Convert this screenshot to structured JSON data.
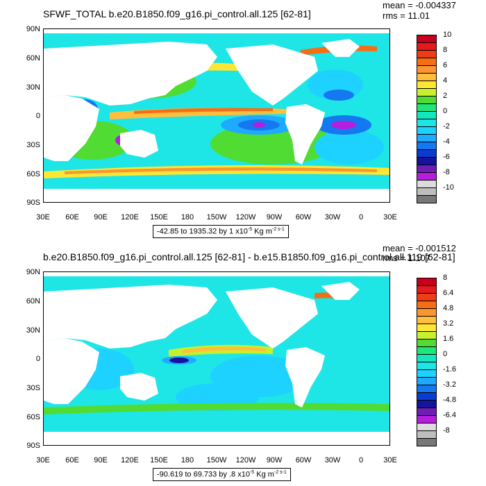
{
  "panels": [
    {
      "title": "SFWF_TOTAL b.e20.B1850.f09_g16.pi_control.all.125 [62-81]",
      "mean": "mean = -0.004337",
      "rms": "rms = 11.01",
      "range_prefix": "-42.85 to 1935.32 by 1 x10",
      "range_exp": "-5",
      "range_units": " Kg m",
      "range_units_exp": "-2 s-1",
      "colorbar_labels": [
        "10",
        "8",
        "6",
        "4",
        "2",
        "0",
        "-2",
        "-4",
        "-6",
        "-8",
        "-10"
      ]
    },
    {
      "title": "b.e20.B1850.f09_g16.pi_control.all.125 [62-81] - b.e15.B1850.f09_g16.pi_control.all.119 [62-81]",
      "mean": "mean = -0.001512",
      "rms": "rms = 1.107",
      "range_prefix": "-90.619 to 69.733 by .8 x10",
      "range_exp": "-5",
      "range_units": " Kg m",
      "range_units_exp": "-2 s-1",
      "colorbar_labels": [
        "8",
        "6.4",
        "4.8",
        "3.2",
        "1.6",
        "0",
        "-1.6",
        "-3.2",
        "-4.8",
        "-6.4",
        "-8"
      ]
    }
  ],
  "lat_labels": [
    "90N",
    "60N",
    "30N",
    "0",
    "30S",
    "60S",
    "90S"
  ],
  "lon_labels": [
    "30E",
    "60E",
    "90E",
    "120E",
    "150E",
    "180",
    "150W",
    "120W",
    "90W",
    "60W",
    "30W",
    "0",
    "30E"
  ],
  "colorbar_colors": [
    "#c8001e",
    "#e41a1c",
    "#f03c14",
    "#f56e14",
    "#fa9632",
    "#ffbe3c",
    "#ffe632",
    "#c8f02d",
    "#50dc32",
    "#1ee678",
    "#14e6be",
    "#1ee6e6",
    "#1ed2ff",
    "#1eaaff",
    "#1478f0",
    "#0a3cd2",
    "#1414a0",
    "#6e1eb4",
    "#b41edc",
    "#dcdcdc",
    "#bebebe",
    "#787878"
  ]
}
